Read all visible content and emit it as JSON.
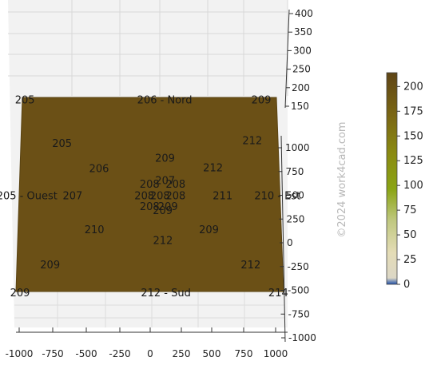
{
  "chart_data": {
    "type": "heatmap",
    "x_ticks": [
      "-1000",
      "-750",
      "-500",
      "-250",
      "0",
      "250",
      "500",
      "750",
      "1000"
    ],
    "y_ticks": [
      "1000",
      "750",
      "500",
      "250",
      "0",
      "-250",
      "-500",
      "-750",
      "-1000"
    ],
    "z_ticks": [
      "400",
      "350",
      "300",
      "250",
      "200",
      "150"
    ],
    "x_range": [
      -1000,
      1000
    ],
    "y_range": [
      -1000,
      1000
    ],
    "z_range": [
      150,
      400
    ],
    "surface_color": "#6b5016",
    "points": [
      {
        "label": "205",
        "x": -980,
        "y": 980
      },
      {
        "label": "205",
        "x": -680,
        "y": 530
      },
      {
        "label": "206 - Nord",
        "x": 120,
        "y": 980
      },
      {
        "label": "209",
        "x": 880,
        "y": 980
      },
      {
        "label": "212",
        "x": 800,
        "y": 560
      },
      {
        "label": "209",
        "x": 120,
        "y": 380
      },
      {
        "label": "206",
        "x": -390,
        "y": 270
      },
      {
        "label": "212",
        "x": 490,
        "y": 280
      },
      {
        "label": "207",
        "x": 120,
        "y": 150
      },
      {
        "label": "208",
        "x": 0,
        "y": 110
      },
      {
        "label": "208",
        "x": 200,
        "y": 110
      },
      {
        "label": "205 - Ouest",
        "x": -940,
        "y": -10
      },
      {
        "label": "207",
        "x": -590,
        "y": -10
      },
      {
        "label": "208",
        "x": -40,
        "y": -10
      },
      {
        "label": "208",
        "x": 80,
        "y": -10
      },
      {
        "label": "208",
        "x": 200,
        "y": -10
      },
      {
        "label": "211",
        "x": 560,
        "y": -10
      },
      {
        "label": "210 - Est",
        "x": 980,
        "y": -10
      },
      {
        "label": "208",
        "x": 0,
        "y": -120
      },
      {
        "label": "209",
        "x": 140,
        "y": -120
      },
      {
        "label": "209",
        "x": 100,
        "y": -160
      },
      {
        "label": "210",
        "x": -420,
        "y": -360
      },
      {
        "label": "209",
        "x": 450,
        "y": -360
      },
      {
        "label": "212",
        "x": 100,
        "y": -470
      },
      {
        "label": "209",
        "x": -750,
        "y": -720
      },
      {
        "label": "212",
        "x": 760,
        "y": -720
      },
      {
        "label": "209",
        "x": -970,
        "y": -1010
      },
      {
        "label": "212 - Sud",
        "x": 120,
        "y": -1010
      },
      {
        "label": "214",
        "x": 960,
        "y": -1010
      }
    ],
    "colorbar": {
      "ticks": [
        "200",
        "175",
        "150",
        "125",
        "100",
        "75",
        "50",
        "25",
        "0"
      ],
      "range": [
        0,
        214
      ],
      "colors": [
        "#6b5016",
        "#7a6a14",
        "#8a8a12",
        "#8aa014",
        "#b4c45a",
        "#e0d9b0",
        "#e8e0c8",
        "#2e5aa8"
      ]
    },
    "watermark": "©2024 work4cad.com"
  }
}
